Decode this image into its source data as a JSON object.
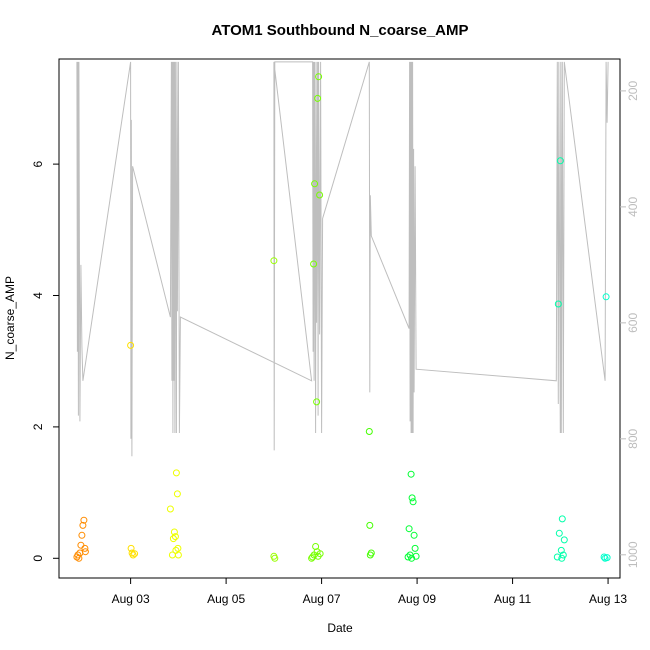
{
  "chart_data": {
    "type": "scatter",
    "title": "ATOM1 Southbound N_coarse_AMP",
    "xlabel": "Date",
    "ylabel": "N_coarse_AMP",
    "x_ticks": [
      "Aug 03",
      "Aug 05",
      "Aug 07",
      "Aug 09",
      "Aug 11",
      "Aug 13"
    ],
    "y_ticks": [
      "0",
      "2",
      "4",
      "6"
    ],
    "y2_ticks": [
      "200",
      "400",
      "600",
      "800",
      "1000"
    ],
    "xlim": [
      "2023-08-01 12:00",
      "2023-08-13 06:00"
    ],
    "ylim": [
      -0.3,
      7.6
    ],
    "y2lim_reversed": [
      1040,
      145
    ],
    "grid": false,
    "colors": {
      "line": "#bebebe",
      "ticks_right": "#bdbdbd",
      "axis": "#000000"
    },
    "points": [
      {
        "x": "2023-08-01 21:00",
        "y": 0.02,
        "color": "#ff8c00"
      },
      {
        "x": "2023-08-01 21:30",
        "y": 0.05,
        "color": "#ff8c00"
      },
      {
        "x": "2023-08-01 22:00",
        "y": 0.0,
        "color": "#ff8c00"
      },
      {
        "x": "2023-08-01 22:30",
        "y": 0.08,
        "color": "#ff8c00"
      },
      {
        "x": "2023-08-01 23:00",
        "y": 0.2,
        "color": "#ff8c00"
      },
      {
        "x": "2023-08-01 23:30",
        "y": 0.35,
        "color": "#ff8c00"
      },
      {
        "x": "2023-08-02 00:00",
        "y": 0.5,
        "color": "#ff8c00"
      },
      {
        "x": "2023-08-02 00:30",
        "y": 0.58,
        "color": "#ff8c00"
      },
      {
        "x": "2023-08-02 01:00",
        "y": 0.15,
        "color": "#ff8c00"
      },
      {
        "x": "2023-08-02 01:15",
        "y": 0.1,
        "color": "#ff8c00"
      },
      {
        "x": "2023-08-03 00:00",
        "y": 3.24,
        "color": "#ffe000"
      },
      {
        "x": "2023-08-03 00:15",
        "y": 0.15,
        "color": "#ffe000"
      },
      {
        "x": "2023-08-03 00:45",
        "y": 0.08,
        "color": "#ffe000"
      },
      {
        "x": "2023-08-03 01:15",
        "y": 0.05,
        "color": "#ffe000"
      },
      {
        "x": "2023-08-03 02:00",
        "y": 0.07,
        "color": "#ffe000"
      },
      {
        "x": "2023-08-03 20:00",
        "y": 0.75,
        "color": "#eeff00"
      },
      {
        "x": "2023-08-03 21:00",
        "y": 0.05,
        "color": "#eeff00"
      },
      {
        "x": "2023-08-03 21:30",
        "y": 0.3,
        "color": "#eeff00"
      },
      {
        "x": "2023-08-03 22:00",
        "y": 0.4,
        "color": "#eeff00"
      },
      {
        "x": "2023-08-03 22:30",
        "y": 0.33,
        "color": "#eeff00"
      },
      {
        "x": "2023-08-03 23:00",
        "y": 1.3,
        "color": "#eeff00"
      },
      {
        "x": "2023-08-03 23:30",
        "y": 0.98,
        "color": "#eeff00"
      },
      {
        "x": "2023-08-03 23:45",
        "y": 0.15,
        "color": "#eeff00"
      },
      {
        "x": "2023-08-04 00:00",
        "y": 0.05,
        "color": "#eeff00"
      },
      {
        "x": "2023-08-03 22:45",
        "y": 0.12,
        "color": "#eeff00"
      },
      {
        "x": "2023-08-06 00:00",
        "y": 4.53,
        "color": "#99ff00"
      },
      {
        "x": "2023-08-06 00:00",
        "y": 0.03,
        "color": "#99ff00"
      },
      {
        "x": "2023-08-06 00:30",
        "y": 0.0,
        "color": "#99ff00"
      },
      {
        "x": "2023-08-06 20:00",
        "y": 4.48,
        "color": "#77ff00"
      },
      {
        "x": "2023-08-06 20:30",
        "y": 5.7,
        "color": "#77ff00"
      },
      {
        "x": "2023-08-06 21:30",
        "y": 2.38,
        "color": "#77ff00"
      },
      {
        "x": "2023-08-06 22:00",
        "y": 7.0,
        "color": "#77ff00"
      },
      {
        "x": "2023-08-06 22:30",
        "y": 7.33,
        "color": "#77ff00"
      },
      {
        "x": "2023-08-06 23:00",
        "y": 5.53,
        "color": "#77ff00"
      },
      {
        "x": "2023-08-06 19:00",
        "y": 0.0,
        "color": "#77ff00"
      },
      {
        "x": "2023-08-06 19:30",
        "y": 0.02,
        "color": "#77ff00"
      },
      {
        "x": "2023-08-06 20:15",
        "y": 0.05,
        "color": "#77ff00"
      },
      {
        "x": "2023-08-06 21:00",
        "y": 0.18,
        "color": "#77ff00"
      },
      {
        "x": "2023-08-06 21:45",
        "y": 0.1,
        "color": "#77ff00"
      },
      {
        "x": "2023-08-06 22:15",
        "y": 0.03,
        "color": "#77ff00"
      },
      {
        "x": "2023-08-06 23:15",
        "y": 0.07,
        "color": "#77ff00"
      },
      {
        "x": "2023-08-08 00:00",
        "y": 1.93,
        "color": "#44ff00"
      },
      {
        "x": "2023-08-08 00:15",
        "y": 0.5,
        "color": "#44ff00"
      },
      {
        "x": "2023-08-08 00:30",
        "y": 0.05,
        "color": "#44ff00"
      },
      {
        "x": "2023-08-08 01:00",
        "y": 0.08,
        "color": "#44ff00"
      },
      {
        "x": "2023-08-08 20:00",
        "y": 0.45,
        "color": "#00ff33"
      },
      {
        "x": "2023-08-08 20:30",
        "y": 0.05,
        "color": "#00ff33"
      },
      {
        "x": "2023-08-08 21:00",
        "y": 1.28,
        "color": "#00ff33"
      },
      {
        "x": "2023-08-08 21:30",
        "y": 0.92,
        "color": "#00ff33"
      },
      {
        "x": "2023-08-08 22:00",
        "y": 0.86,
        "color": "#00ff33"
      },
      {
        "x": "2023-08-08 22:30",
        "y": 0.35,
        "color": "#00ff33"
      },
      {
        "x": "2023-08-08 23:00",
        "y": 0.15,
        "color": "#00ff33"
      },
      {
        "x": "2023-08-08 19:30",
        "y": 0.02,
        "color": "#00ff33"
      },
      {
        "x": "2023-08-08 21:15",
        "y": 0.0,
        "color": "#00ff33"
      },
      {
        "x": "2023-08-08 23:30",
        "y": 0.03,
        "color": "#00ff33"
      },
      {
        "x": "2023-08-11 23:00",
        "y": 3.87,
        "color": "#00ffaa"
      },
      {
        "x": "2023-08-12 00:00",
        "y": 6.05,
        "color": "#00ffaa"
      },
      {
        "x": "2023-08-11 23:30",
        "y": 0.38,
        "color": "#00ffaa"
      },
      {
        "x": "2023-08-12 01:00",
        "y": 0.6,
        "color": "#00ffaa"
      },
      {
        "x": "2023-08-12 02:00",
        "y": 0.28,
        "color": "#00ffaa"
      },
      {
        "x": "2023-08-12 00:30",
        "y": 0.12,
        "color": "#00ffaa"
      },
      {
        "x": "2023-08-12 01:30",
        "y": 0.05,
        "color": "#00ffaa"
      },
      {
        "x": "2023-08-11 22:30",
        "y": 0.02,
        "color": "#00ffaa"
      },
      {
        "x": "2023-08-12 00:45",
        "y": 0.0,
        "color": "#00ffaa"
      },
      {
        "x": "2023-08-12 23:00",
        "y": 3.98,
        "color": "#00ffcc"
      },
      {
        "x": "2023-08-12 22:00",
        "y": 0.02,
        "color": "#00ffcc"
      },
      {
        "x": "2023-08-12 22:30",
        "y": 0.0,
        "color": "#00ffcc"
      },
      {
        "x": "2023-08-12 23:30",
        "y": 0.01,
        "color": "#00ffcc"
      }
    ],
    "line_y2": [
      [
        "2023-08-01 21:00",
        150
      ],
      [
        "2023-08-01 21:15",
        650
      ],
      [
        "2023-08-01 21:30",
        150
      ],
      [
        "2023-08-01 21:45",
        760
      ],
      [
        "2023-08-01 22:00",
        150
      ],
      [
        "2023-08-01 22:30",
        770
      ],
      [
        "2023-08-01 23:00",
        500
      ],
      [
        "2023-08-01 23:30",
        640
      ],
      [
        "2023-08-02 00:00",
        700
      ],
      [
        "2023-08-03 00:00",
        150
      ],
      [
        "2023-08-03 00:10",
        800
      ],
      [
        "2023-08-03 00:20",
        250
      ],
      [
        "2023-08-03 00:40",
        830
      ],
      [
        "2023-08-03 01:00",
        330
      ],
      [
        "2023-08-03 20:00",
        590
      ],
      [
        "2023-08-03 20:30",
        150
      ],
      [
        "2023-08-03 20:45",
        700
      ],
      [
        "2023-08-03 21:00",
        150
      ],
      [
        "2023-08-03 21:15",
        790
      ],
      [
        "2023-08-03 21:30",
        150
      ],
      [
        "2023-08-03 21:45",
        700
      ],
      [
        "2023-08-03 22:00",
        150
      ],
      [
        "2023-08-03 22:15",
        790
      ],
      [
        "2023-08-03 22:30",
        150
      ],
      [
        "2023-08-03 23:00",
        790
      ],
      [
        "2023-08-03 23:15",
        150
      ],
      [
        "2023-08-03 23:30",
        580
      ],
      [
        "2023-08-04 00:00",
        150
      ],
      [
        "2023-08-04 00:30",
        790
      ],
      [
        "2023-08-04 01:00",
        590
      ],
      [
        "2023-08-06 19:00",
        700
      ],
      [
        "2023-08-06 00:00",
        150
      ],
      [
        "2023-08-06 00:10",
        820
      ],
      [
        "2023-08-06 00:20",
        480
      ],
      [
        "2023-08-06 00:30",
        150
      ],
      [
        "2023-08-06 19:30",
        150
      ],
      [
        "2023-08-06 19:45",
        650
      ],
      [
        "2023-08-06 20:00",
        150
      ],
      [
        "2023-08-06 20:15",
        700
      ],
      [
        "2023-08-06 20:30",
        150
      ],
      [
        "2023-08-06 21:00",
        790
      ],
      [
        "2023-08-06 21:15",
        150
      ],
      [
        "2023-08-06 21:30",
        600
      ],
      [
        "2023-08-06 22:00",
        150
      ],
      [
        "2023-08-06 22:15",
        760
      ],
      [
        "2023-08-06 22:30",
        150
      ],
      [
        "2023-08-06 23:00",
        620
      ],
      [
        "2023-08-06 23:30",
        150
      ],
      [
        "2023-08-07 00:00",
        790
      ],
      [
        "2023-08-07 00:30",
        420
      ],
      [
        "2023-08-08 00:00",
        150
      ],
      [
        "2023-08-08 00:15",
        720
      ],
      [
        "2023-08-08 00:30",
        380
      ],
      [
        "2023-08-08 01:00",
        450
      ],
      [
        "2023-08-08 20:00",
        610
      ],
      [
        "2023-08-08 20:15",
        150
      ],
      [
        "2023-08-08 20:30",
        770
      ],
      [
        "2023-08-08 20:45",
        150
      ],
      [
        "2023-08-08 21:00",
        790
      ],
      [
        "2023-08-08 21:15",
        150
      ],
      [
        "2023-08-08 21:30",
        790
      ],
      [
        "2023-08-08 21:45",
        150
      ],
      [
        "2023-08-08 22:00",
        790
      ],
      [
        "2023-08-08 22:15",
        300
      ],
      [
        "2023-08-08 22:30",
        720
      ],
      [
        "2023-08-08 23:00",
        330
      ],
      [
        "2023-08-08 23:30",
        680
      ],
      [
        "2023-08-11 22:00",
        700
      ],
      [
        "2023-08-11 22:30",
        150
      ],
      [
        "2023-08-11 23:00",
        740
      ],
      [
        "2023-08-11 23:15",
        150
      ],
      [
        "2023-08-12 00:00",
        790
      ],
      [
        "2023-08-12 00:15",
        150
      ],
      [
        "2023-08-12 00:30",
        790
      ],
      [
        "2023-08-12 01:00",
        150
      ],
      [
        "2023-08-12 01:30",
        790
      ],
      [
        "2023-08-12 02:00",
        150
      ],
      [
        "2023-08-12 22:30",
        700
      ],
      [
        "2023-08-12 23:00",
        150
      ],
      [
        "2023-08-12 23:30",
        255
      ],
      [
        "2023-08-13 00:00",
        150
      ]
    ]
  }
}
